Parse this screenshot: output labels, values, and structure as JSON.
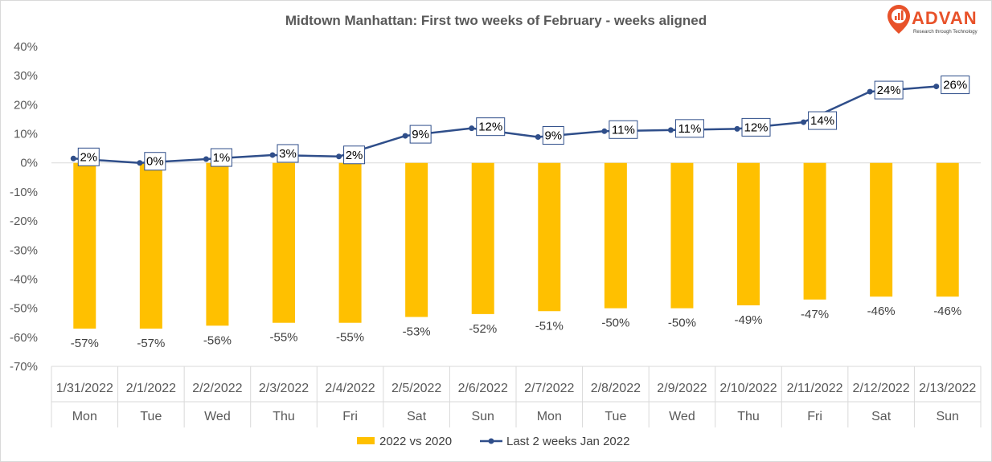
{
  "chart_data": {
    "type": "bar",
    "title": "Midtown Manhattan: First two weeks of February - weeks aligned",
    "categories": [
      "1/31/2022",
      "2/1/2022",
      "2/2/2022",
      "2/3/2022",
      "2/4/2022",
      "2/5/2022",
      "2/6/2022",
      "2/7/2022",
      "2/8/2022",
      "2/9/2022",
      "2/10/2022",
      "2/11/2022",
      "2/12/2022",
      "2/13/2022"
    ],
    "days": [
      "Mon",
      "Tue",
      "Wed",
      "Thu",
      "Fri",
      "Sat",
      "Sun",
      "Mon",
      "Tue",
      "Wed",
      "Thu",
      "Fri",
      "Sat",
      "Sun"
    ],
    "ylim": [
      -70,
      40
    ],
    "yticks": [
      40,
      30,
      20,
      10,
      0,
      -10,
      -20,
      -30,
      -40,
      -50,
      -60,
      -70
    ],
    "tick_suffix": "%",
    "grid": false,
    "legend_position": "bottom",
    "series": [
      {
        "name": "2022 vs 2020",
        "type": "bar",
        "color": "#ffc000",
        "values": [
          -57,
          -57,
          -56,
          -55,
          -55,
          -53,
          -52,
          -51,
          -50,
          -50,
          -49,
          -47,
          -46,
          -46
        ],
        "labels": [
          "-57%",
          "-57%",
          "-56%",
          "-55%",
          "-55%",
          "-53%",
          "-52%",
          "-51%",
          "-50%",
          "-50%",
          "-49%",
          "-47%",
          "-46%",
          "-46%"
        ]
      },
      {
        "name": "Last 2 weeks Jan 2022",
        "type": "line",
        "color": "#2f4e8a",
        "values": [
          1.5,
          0,
          1.3,
          2.7,
          2.2,
          9.3,
          11.9,
          8.9,
          10.9,
          11.3,
          11.7,
          14,
          24.5,
          26.3
        ],
        "labels": [
          "2%",
          "0%",
          "1%",
          "3%",
          "2%",
          "9%",
          "12%",
          "9%",
          "11%",
          "11%",
          "12%",
          "14%",
          "24%",
          "26%"
        ]
      }
    ]
  },
  "logo": {
    "name": "ADVAN",
    "tagline": "Research through Technology",
    "color": "#e8522a",
    "icon": "map-pin-chart-icon"
  }
}
